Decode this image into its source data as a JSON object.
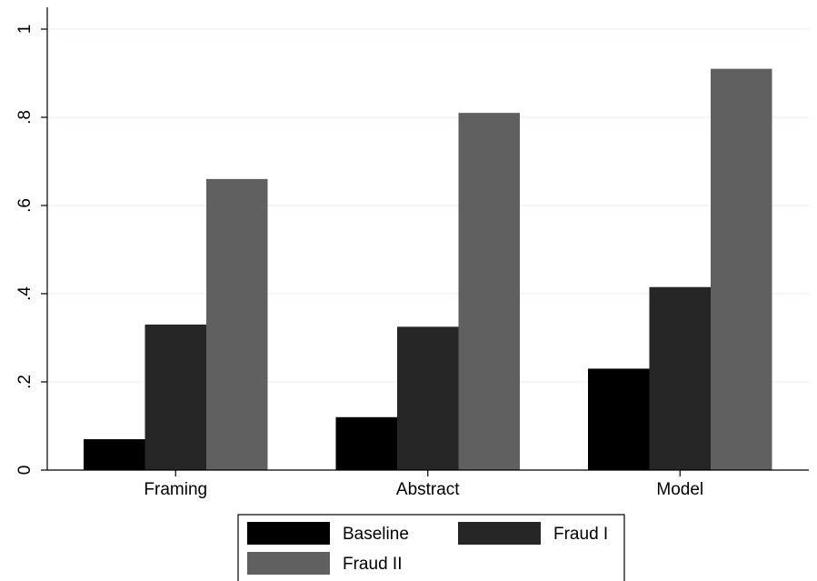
{
  "chart_data": {
    "type": "bar",
    "categories": [
      "Framing",
      "Abstract",
      "Model"
    ],
    "series": [
      {
        "name": "Baseline",
        "values": [
          0.07,
          0.12,
          0.23
        ],
        "color": "#000000"
      },
      {
        "name": "Fraud I",
        "values": [
          0.33,
          0.325,
          0.415
        ],
        "color": "#262626"
      },
      {
        "name": "Fraud II",
        "values": [
          0.66,
          0.81,
          0.91
        ],
        "color": "#606060"
      }
    ],
    "ylim": [
      0,
      1
    ],
    "yticks": [
      0,
      0.2,
      0.4,
      0.6,
      0.8,
      1
    ],
    "ytick_labels": [
      "0",
      ".2",
      ".4",
      ".6",
      ".8",
      "1"
    ],
    "grid": true,
    "legend_position": "bottom"
  }
}
